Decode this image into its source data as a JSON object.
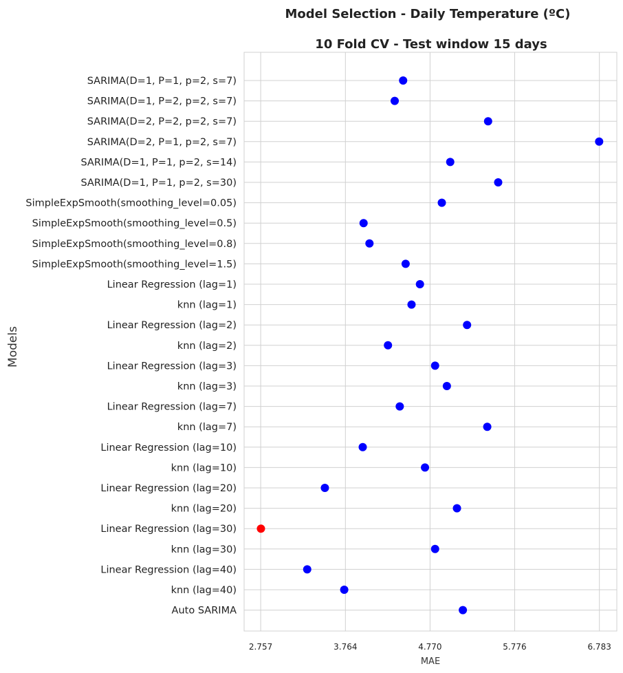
{
  "chart_data": {
    "type": "scatter",
    "suptitle": "Model Selection - Daily Temperature (ºC)",
    "title": "10 Fold CV - Test window 15 days",
    "xlabel": "MAE",
    "ylabel": "Models",
    "xlim": [
      2.56,
      6.99
    ],
    "xticks": [
      2.757,
      3.764,
      4.77,
      5.776,
      6.783
    ],
    "xtick_labels": [
      "2.757",
      "3.764",
      "4.770",
      "5.776",
      "6.783"
    ],
    "grid": true,
    "colors": {
      "default": "#0000ff",
      "best": "#ff0000"
    },
    "categories": [
      "SARIMA(D=1, P=1, p=2, s=7)",
      "SARIMA(D=1, P=2, p=2, s=7)",
      "SARIMA(D=2, P=2, p=2, s=7)",
      "SARIMA(D=2, P=1, p=2, s=7)",
      "SARIMA(D=1, P=1, p=2, s=14)",
      "SARIMA(D=1, P=1, p=2, s=30)",
      "SimpleExpSmooth(smoothing_level=0.05)",
      "SimpleExpSmooth(smoothing_level=0.5)",
      "SimpleExpSmooth(smoothing_level=0.8)",
      "SimpleExpSmooth(smoothing_level=1.5)",
      "Linear Regression (lag=1)",
      "knn (lag=1)",
      "Linear Regression (lag=2)",
      "knn (lag=2)",
      "Linear Regression (lag=3)",
      "knn (lag=3)",
      "Linear Regression (lag=7)",
      "knn (lag=7)",
      "Linear Regression (lag=10)",
      "knn (lag=10)",
      "Linear Regression (lag=20)",
      "knn (lag=20)",
      "Linear Regression (lag=30)",
      "knn (lag=30)",
      "Linear Regression (lag=40)",
      "knn (lag=40)",
      "Auto SARIMA"
    ],
    "values": [
      4.45,
      4.35,
      5.46,
      6.78,
      5.01,
      5.58,
      4.91,
      3.98,
      4.05,
      4.48,
      4.65,
      4.55,
      5.21,
      4.27,
      4.83,
      4.97,
      4.41,
      5.45,
      3.97,
      4.71,
      3.52,
      5.09,
      2.76,
      4.83,
      3.31,
      3.75,
      5.16
    ],
    "best_index": 22
  }
}
